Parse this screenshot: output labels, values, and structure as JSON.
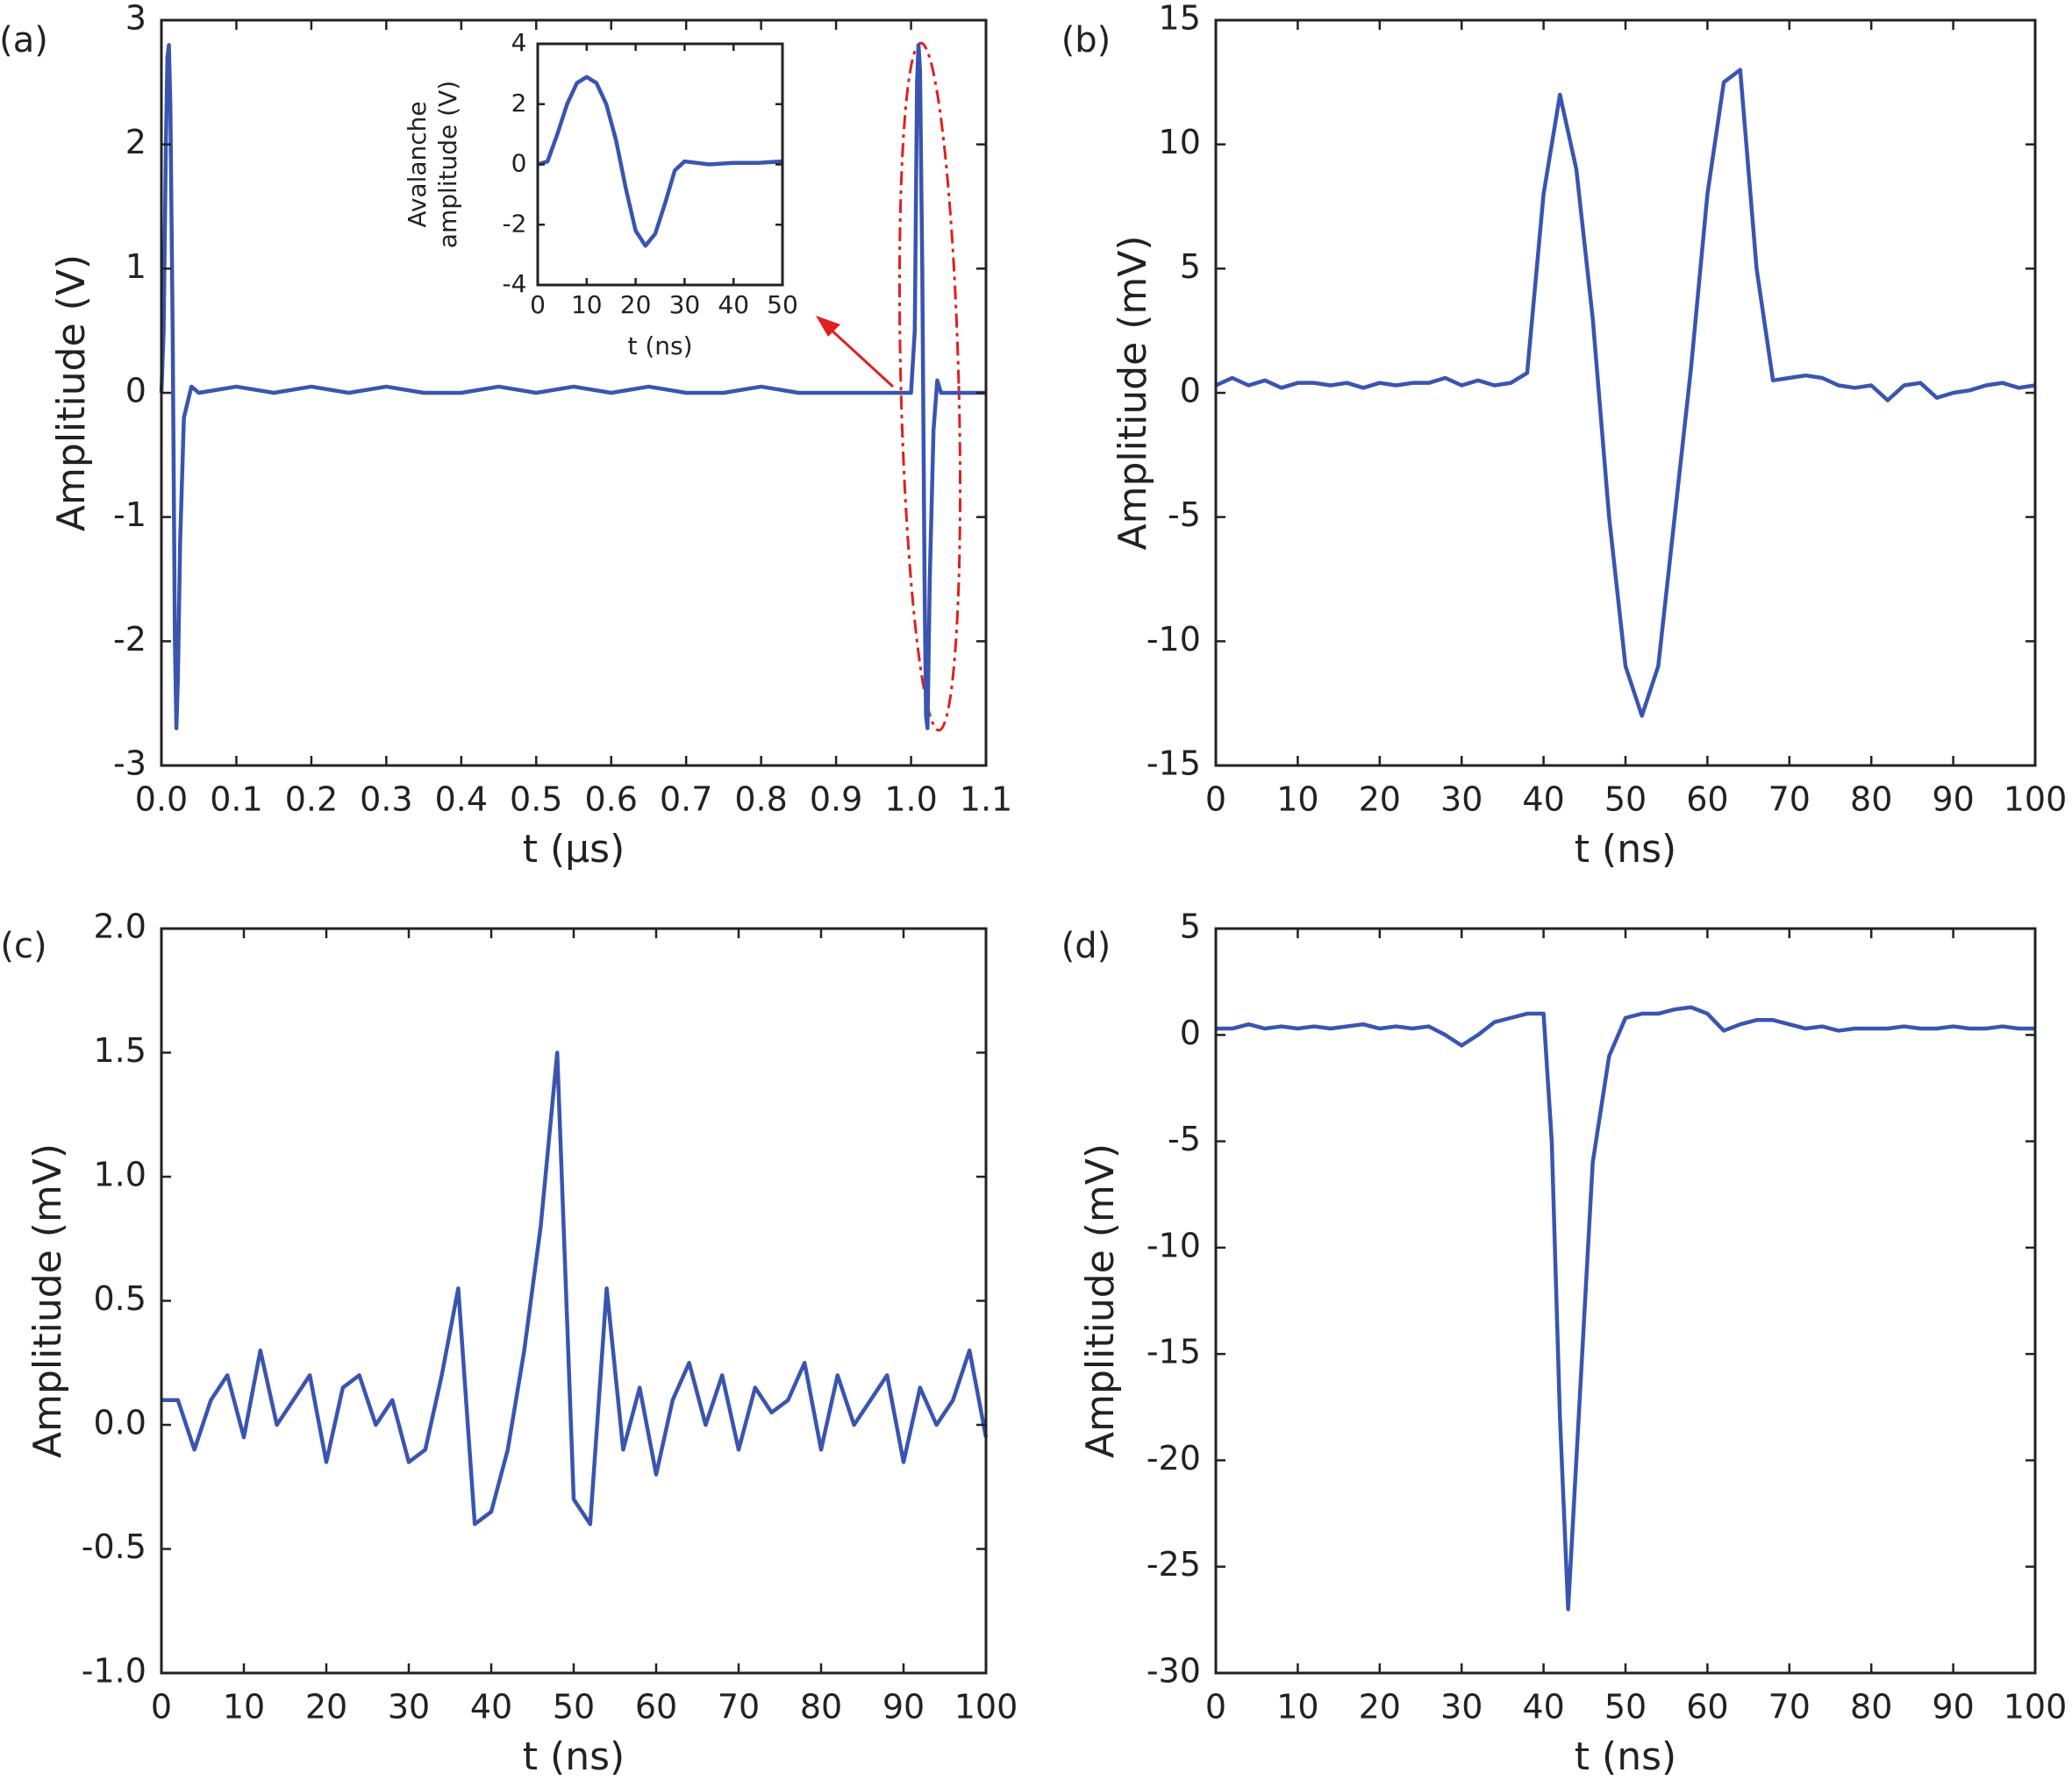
{
  "chart_data": [
    {
      "type": "line",
      "label": "(a)",
      "xlabel": "t (μs)",
      "ylabel": "Amplitiude (V)",
      "color": "#3a55b0",
      "xlim": [
        0,
        1.1
      ],
      "ylim": [
        -3,
        3
      ],
      "xticks": [
        {
          "value": 0,
          "label": "0.0"
        },
        0.1,
        0.2,
        0.3,
        0.4,
        0.5,
        0.6,
        0.7,
        0.8,
        0.9,
        {
          "value": 1,
          "label": "1.0"
        },
        1.1
      ],
      "yticks": [
        -3,
        -2,
        -1,
        0,
        1,
        2,
        3
      ],
      "x": [
        0,
        0.003,
        0.006,
        0.008,
        0.01,
        0.012,
        0.015,
        0.018,
        0.02,
        0.022,
        0.025,
        0.03,
        0.04,
        0.05,
        0.1,
        0.15,
        0.2,
        0.25,
        0.3,
        0.35,
        0.4,
        0.45,
        0.5,
        0.55,
        0.6,
        0.65,
        0.7,
        0.75,
        0.8,
        0.85,
        0.9,
        0.95,
        1.0,
        1.005,
        1.008,
        1.01,
        1.012,
        1.015,
        1.018,
        1.02,
        1.022,
        1.025,
        1.03,
        1.035,
        1.04,
        1.05,
        1.1
      ],
      "values": [
        0,
        0.5,
        2.0,
        2.7,
        2.8,
        2.3,
        0.5,
        -2.0,
        -2.7,
        -2.3,
        -1.2,
        -0.2,
        0.05,
        0,
        0.05,
        0,
        0.05,
        0,
        0.05,
        0,
        0,
        0.05,
        0,
        0.05,
        0,
        0.05,
        0,
        0,
        0.05,
        0,
        0,
        0,
        0,
        0.5,
        2.5,
        2.8,
        2.6,
        1,
        -1.5,
        -2.6,
        -2.7,
        -1.5,
        -0.3,
        0.1,
        0,
        0,
        0
      ]
    },
    {
      "type": "line",
      "xlabel": "t (ns)",
      "ylabel": [
        "Avalanche",
        "amplitude (V)"
      ],
      "color": "#3a55b0",
      "xlim": [
        0,
        50
      ],
      "ylim": [
        -4,
        4
      ],
      "xticks": [
        0,
        10,
        20,
        30,
        40,
        50
      ],
      "yticks": [
        -4,
        -2,
        0,
        2,
        4
      ],
      "x": [
        0,
        2,
        4,
        6,
        8,
        10,
        12,
        14,
        16,
        18,
        20,
        22,
        24,
        26,
        28,
        30,
        35,
        40,
        45,
        50
      ],
      "values": [
        0,
        0.1,
        1,
        2,
        2.7,
        2.9,
        2.7,
        2,
        0.8,
        -0.8,
        -2.2,
        -2.7,
        -2.3,
        -1.3,
        -0.2,
        0.1,
        0,
        0.05,
        0.05,
        0.1
      ]
    },
    {
      "type": "line",
      "label": "(b)",
      "xlabel": "t (ns)",
      "ylabel": "Amplitiude (mV)",
      "color": "#3a55b0",
      "xlim": [
        0,
        100
      ],
      "ylim": [
        -15,
        15
      ],
      "xticks": [
        0,
        10,
        20,
        30,
        40,
        50,
        60,
        70,
        80,
        90,
        100
      ],
      "yticks": [
        -15,
        -10,
        -5,
        0,
        5,
        10,
        15
      ],
      "x": [
        0,
        2,
        4,
        6,
        8,
        10,
        12,
        14,
        16,
        18,
        20,
        22,
        24,
        26,
        28,
        30,
        32,
        34,
        36,
        38,
        40,
        42,
        44,
        46,
        48,
        50,
        52,
        54,
        56,
        58,
        60,
        62,
        64,
        66,
        68,
        70,
        72,
        74,
        76,
        78,
        80,
        82,
        84,
        86,
        88,
        90,
        92,
        94,
        96,
        98,
        100
      ],
      "values": [
        0.3,
        0.6,
        0.3,
        0.5,
        0.2,
        0.4,
        0.4,
        0.3,
        0.4,
        0.2,
        0.4,
        0.3,
        0.4,
        0.4,
        0.6,
        0.3,
        0.5,
        0.3,
        0.4,
        0.8,
        8,
        12,
        9,
        3,
        -5,
        -11,
        -13,
        -11,
        -5,
        1,
        8,
        12.5,
        13,
        5,
        0.5,
        0.6,
        0.7,
        0.6,
        0.3,
        0.2,
        0.3,
        -0.3,
        0.3,
        0.4,
        -0.2,
        0,
        0.1,
        0.3,
        0.4,
        0.2,
        0.3
      ]
    },
    {
      "type": "line",
      "label": "(c)",
      "xlabel": "t (ns)",
      "ylabel": "Amplitiude (mV)",
      "color": "#3a55b0",
      "xlim": [
        0,
        100
      ],
      "ylim": [
        -1,
        2
      ],
      "xticks": [
        0,
        10,
        20,
        30,
        40,
        50,
        60,
        70,
        80,
        90,
        100
      ],
      "yticks": [
        {
          "value": -1,
          "label": "-1.0"
        },
        -0.5,
        {
          "value": 0,
          "label": "0.0"
        },
        0.5,
        {
          "value": 1,
          "label": "1.0"
        },
        1.5,
        {
          "value": 2,
          "label": "2.0"
        }
      ],
      "x": [
        0,
        2,
        4,
        6,
        8,
        10,
        12,
        14,
        16,
        18,
        20,
        22,
        24,
        26,
        28,
        30,
        32,
        34,
        36,
        38,
        40,
        42,
        44,
        46,
        48,
        50,
        52,
        54,
        56,
        58,
        60,
        62,
        64,
        66,
        68,
        70,
        72,
        74,
        76,
        78,
        80,
        82,
        84,
        86,
        88,
        90,
        92,
        94,
        96,
        98,
        100
      ],
      "values": [
        0.1,
        0.1,
        -0.1,
        0.1,
        0.2,
        -0.05,
        0.3,
        0,
        0.1,
        0.2,
        -0.15,
        0.15,
        0.2,
        0,
        0.1,
        -0.15,
        -0.1,
        0.2,
        0.55,
        -0.4,
        -0.35,
        -0.1,
        0.3,
        0.8,
        1.5,
        -0.3,
        -0.4,
        0.55,
        -0.1,
        0.15,
        -0.2,
        0.1,
        0.25,
        0,
        0.2,
        -0.1,
        0.15,
        0.05,
        0.1,
        0.25,
        -0.1,
        0.2,
        0,
        0.1,
        0.2,
        -0.15,
        0.15,
        0,
        0.1,
        0.3,
        -0.05
      ]
    },
    {
      "type": "line",
      "label": "(d)",
      "xlabel": "t (ns)",
      "ylabel": "Amplitiude (mV)",
      "color": "#3a55b0",
      "xlim": [
        0,
        100
      ],
      "ylim": [
        -30,
        5
      ],
      "xticks": [
        0,
        10,
        20,
        30,
        40,
        50,
        60,
        70,
        80,
        90,
        100
      ],
      "yticks": [
        -30,
        -25,
        -20,
        -15,
        -10,
        -5,
        0,
        5
      ],
      "x": [
        0,
        2,
        4,
        6,
        8,
        10,
        12,
        14,
        16,
        18,
        20,
        22,
        24,
        26,
        28,
        30,
        32,
        34,
        36,
        38,
        40,
        41,
        42,
        43,
        44,
        46,
        48,
        50,
        52,
        54,
        56,
        58,
        60,
        62,
        64,
        66,
        68,
        70,
        72,
        74,
        76,
        78,
        80,
        82,
        84,
        86,
        88,
        90,
        92,
        94,
        96,
        98,
        100
      ],
      "values": [
        0.3,
        0.3,
        0.5,
        0.3,
        0.4,
        0.3,
        0.4,
        0.3,
        0.4,
        0.5,
        0.3,
        0.4,
        0.3,
        0.4,
        0,
        -0.5,
        0,
        0.6,
        0.8,
        1,
        1,
        -5,
        -18,
        -27,
        -20,
        -6,
        -1,
        0.8,
        1,
        1,
        1.2,
        1.3,
        1,
        0.2,
        0.5,
        0.7,
        0.7,
        0.5,
        0.3,
        0.4,
        0.2,
        0.3,
        0.3,
        0.3,
        0.4,
        0.3,
        0.3,
        0.4,
        0.3,
        0.3,
        0.4,
        0.3,
        0.3
      ]
    }
  ]
}
